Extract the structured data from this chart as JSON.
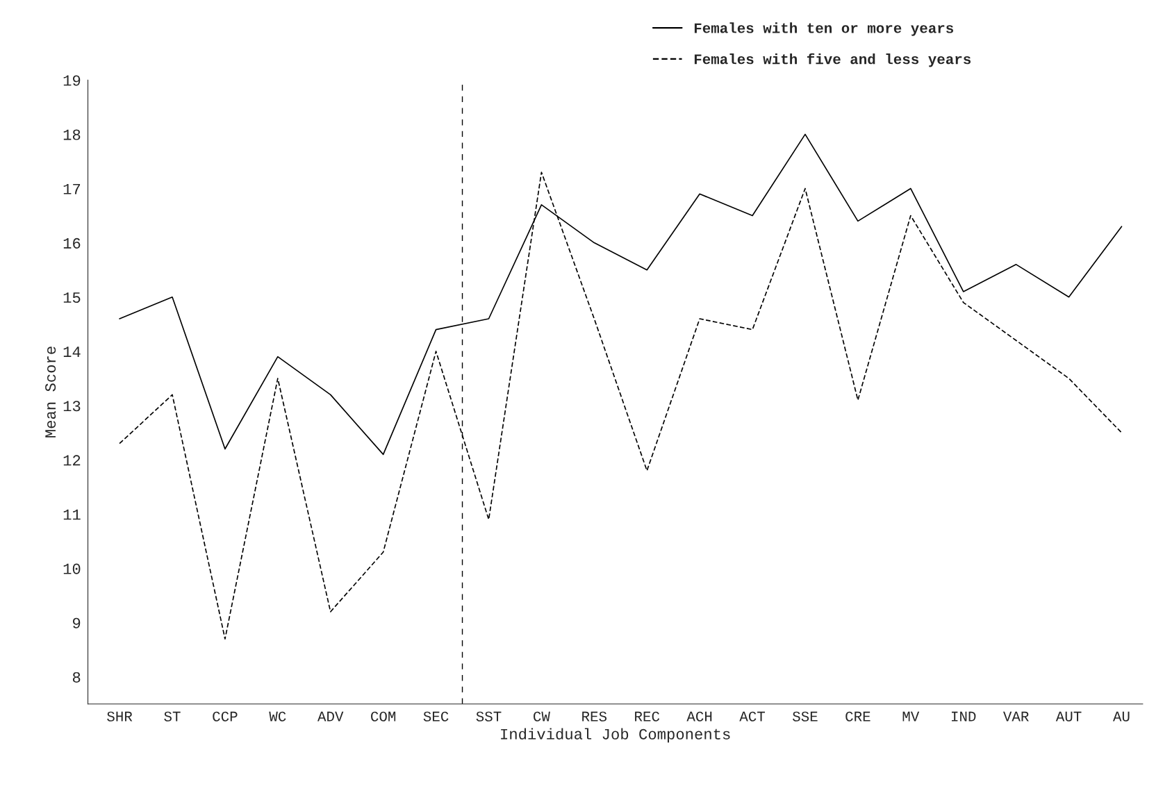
{
  "chart_data": {
    "type": "line",
    "xlabel": "Individual Job Components",
    "ylabel": "Mean Score",
    "categories": [
      "SHR",
      "ST",
      "CCP",
      "WC",
      "ADV",
      "COM",
      "SEC",
      "SST",
      "CW",
      "RES",
      "REC",
      "ACH",
      "ACT",
      "SSE",
      "CRE",
      "MV",
      "IND",
      "VAR",
      "AUT",
      "AU"
    ],
    "series": [
      {
        "name": "Females with ten or more years",
        "color": "#000000",
        "line_style": "solid",
        "values": [
          14.6,
          15.0,
          12.2,
          13.9,
          13.2,
          12.1,
          14.4,
          14.6,
          16.7,
          16.0,
          15.5,
          16.9,
          16.5,
          18.0,
          16.4,
          17.0,
          15.1,
          15.6,
          15.0,
          16.3
        ]
      },
      {
        "name": "Females with five and less years",
        "color": "#000000",
        "line_style": "dashed",
        "values": [
          12.3,
          13.2,
          8.7,
          13.5,
          9.2,
          10.3,
          14.0,
          10.9,
          17.3,
          14.6,
          11.8,
          14.6,
          14.4,
          17.0,
          13.1,
          16.5,
          14.9,
          14.2,
          13.5,
          12.5
        ]
      }
    ],
    "ylim": [
      7.5,
      19
    ],
    "yticks": [
      8,
      9,
      10,
      11,
      12,
      13,
      14,
      15,
      16,
      17,
      18,
      19
    ],
    "grid": false,
    "legend": "top right",
    "marker": "none"
  }
}
